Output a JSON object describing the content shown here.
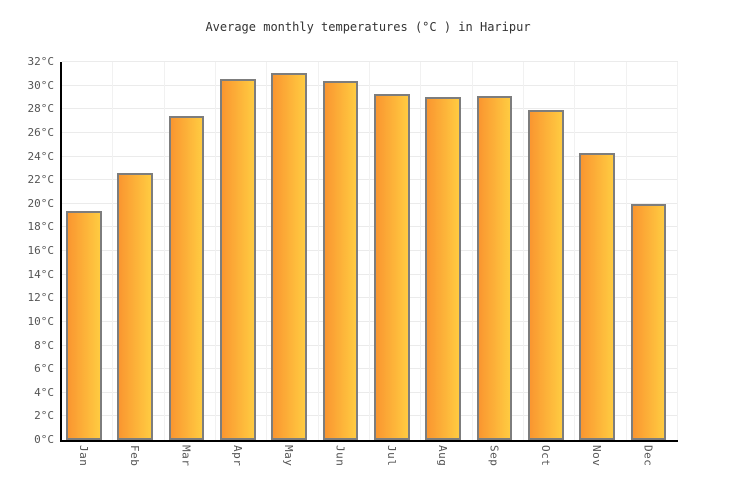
{
  "title": "Average monthly temperatures (°C ) in Haripur",
  "chart_data": {
    "type": "bar",
    "title": "Average monthly temperatures (°C ) in Haripur",
    "categories": [
      "Jan",
      "Feb",
      "Mar",
      "Apr",
      "May",
      "Jun",
      "Jul",
      "Aug",
      "Sep",
      "Oct",
      "Nov",
      "Dec"
    ],
    "values": [
      19.4,
      22.6,
      27.4,
      30.6,
      31.1,
      30.4,
      29.3,
      29.0,
      29.1,
      27.9,
      24.3,
      20.0
    ],
    "unit": "°C",
    "xlabel": "",
    "ylabel": "",
    "ylim": [
      0,
      32
    ],
    "ytick_step": 2,
    "ytick_suffix": "°C",
    "grid": true,
    "legend_position": "none",
    "colors": {
      "bar_gradient_left": "#fa9630",
      "bar_gradient_right": "#ffcb41",
      "bar_border": "#7d7d7d",
      "axis": "#000000",
      "gridline_horizontal": "#ebebeb",
      "gridline_vertical": "#f1f1f1",
      "tick_label_text": "#555555",
      "title_text": "#333333",
      "background": "#ffffff"
    }
  }
}
